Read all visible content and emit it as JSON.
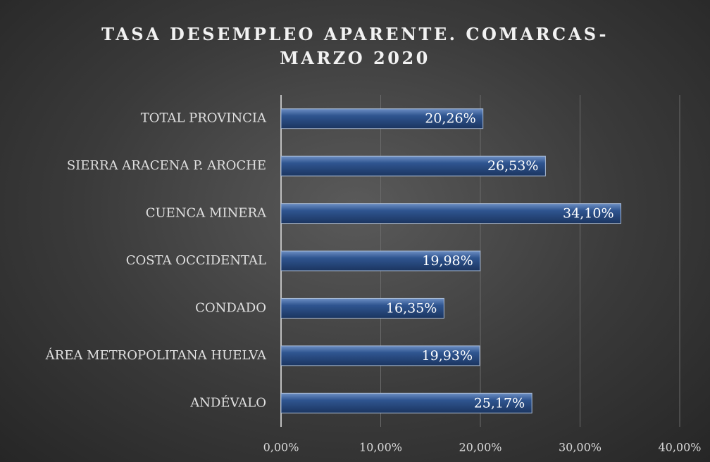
{
  "chart_data": {
    "type": "bar",
    "orientation": "horizontal",
    "title": "TASA DESEMPLEO APARENTE. COMARCAS-MARZO 2020",
    "categories": [
      "TOTAL PROVINCIA",
      "SIERRA ARACENA P. AROCHE",
      "CUENCA MINERA",
      "COSTA OCCIDENTAL",
      "CONDADO",
      "ÁREA METROPOLITANA HUELVA",
      "ANDÉVALO"
    ],
    "values": [
      20.26,
      26.53,
      34.1,
      19.98,
      16.35,
      19.93,
      25.17
    ],
    "value_labels": [
      "20,26%",
      "26,53%",
      "34,10%",
      "19,98%",
      "16,35%",
      "19,93%",
      "25,17%"
    ],
    "color": "#2c4f85",
    "xlim": [
      0,
      40
    ],
    "xticks": [
      {
        "value": 0,
        "label": "0,00%"
      },
      {
        "value": 10,
        "label": "10,00%"
      },
      {
        "value": 20,
        "label": "20,00%"
      },
      {
        "value": 30,
        "label": "30,00%"
      },
      {
        "value": 40,
        "label": "40,00%"
      }
    ],
    "grid": true
  }
}
